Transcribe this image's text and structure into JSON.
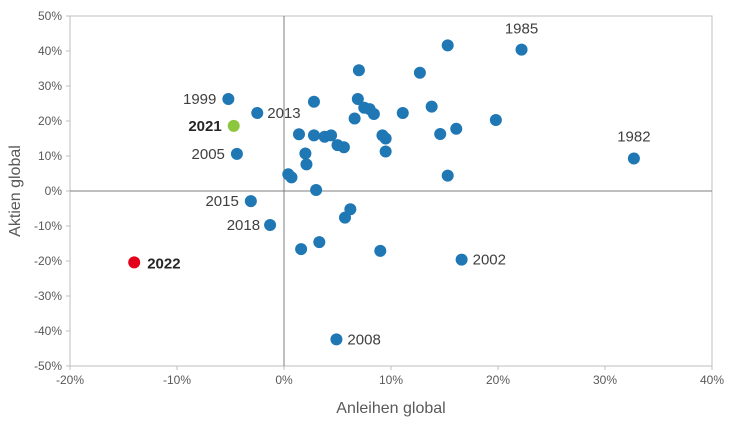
{
  "chart_data": {
    "type": "scatter",
    "title": "",
    "xlabel": "Anleihen global",
    "ylabel": "Aktien global",
    "xlim": [
      -20,
      40
    ],
    "ylim": [
      -50,
      50
    ],
    "x_ticks": [
      -20,
      -10,
      0,
      10,
      20,
      30,
      40
    ],
    "y_ticks": [
      -50,
      -40,
      -30,
      -20,
      -10,
      0,
      10,
      20,
      30,
      40,
      50
    ],
    "x_tick_labels": [
      "-20%",
      "-10%",
      "0%",
      "10%",
      "20%",
      "30%",
      "40%"
    ],
    "y_tick_labels": [
      "-50%",
      "-40%",
      "-30%",
      "-20%",
      "-10%",
      "0%",
      "10%",
      "20%",
      "30%",
      "40%",
      "50%"
    ],
    "grid": false,
    "colors": {
      "default": "#1f77b4",
      "highlight_2021": "#8cc63f",
      "highlight_2022": "#e3001b",
      "zero_lines": "#7f7f7f",
      "frame": "#bfbfbf"
    },
    "points": [
      {
        "x": 22.2,
        "y": 40.4,
        "label": "1985"
      },
      {
        "x": 32.7,
        "y": 9.3,
        "label": "1982"
      },
      {
        "x": -5.2,
        "y": 26.3,
        "label": "1999"
      },
      {
        "x": -2.5,
        "y": 22.3,
        "label": "2013"
      },
      {
        "x": -4.7,
        "y": 18.6,
        "label": "2021",
        "bold": true,
        "color": "highlight_2021"
      },
      {
        "x": -4.4,
        "y": 10.6,
        "label": "2005"
      },
      {
        "x": -3.1,
        "y": -2.9,
        "label": "2015"
      },
      {
        "x": -1.3,
        "y": -9.7,
        "label": "2018"
      },
      {
        "x": -14.0,
        "y": -20.4,
        "label": "2022",
        "bold": true,
        "color": "highlight_2022"
      },
      {
        "x": 16.6,
        "y": -19.6,
        "label": "2002"
      },
      {
        "x": 4.9,
        "y": -42.4,
        "label": "2008"
      },
      {
        "x": 15.3,
        "y": 41.6,
        "label": ""
      },
      {
        "x": 7.0,
        "y": 34.5,
        "label": ""
      },
      {
        "x": 12.7,
        "y": 33.8,
        "label": ""
      },
      {
        "x": 2.8,
        "y": 25.5,
        "label": ""
      },
      {
        "x": 6.9,
        "y": 26.3,
        "label": ""
      },
      {
        "x": 7.5,
        "y": 23.8,
        "label": ""
      },
      {
        "x": 8.0,
        "y": 23.4,
        "label": ""
      },
      {
        "x": 8.4,
        "y": 22.0,
        "label": ""
      },
      {
        "x": 6.6,
        "y": 20.7,
        "label": ""
      },
      {
        "x": 11.1,
        "y": 22.3,
        "label": ""
      },
      {
        "x": 13.8,
        "y": 24.1,
        "label": ""
      },
      {
        "x": 19.8,
        "y": 20.3,
        "label": ""
      },
      {
        "x": 16.1,
        "y": 17.8,
        "label": ""
      },
      {
        "x": 14.6,
        "y": 16.3,
        "label": ""
      },
      {
        "x": 1.4,
        "y": 16.2,
        "label": ""
      },
      {
        "x": 2.8,
        "y": 15.9,
        "label": ""
      },
      {
        "x": 3.8,
        "y": 15.5,
        "label": ""
      },
      {
        "x": 4.4,
        "y": 15.9,
        "label": ""
      },
      {
        "x": 5.0,
        "y": 13.1,
        "label": ""
      },
      {
        "x": 5.6,
        "y": 12.5,
        "label": ""
      },
      {
        "x": 9.2,
        "y": 15.9,
        "label": ""
      },
      {
        "x": 9.5,
        "y": 15.0,
        "label": ""
      },
      {
        "x": 9.5,
        "y": 11.3,
        "label": ""
      },
      {
        "x": 2.0,
        "y": 10.7,
        "label": ""
      },
      {
        "x": 2.1,
        "y": 7.6,
        "label": ""
      },
      {
        "x": 0.4,
        "y": 4.8,
        "label": ""
      },
      {
        "x": 0.7,
        "y": 3.9,
        "label": ""
      },
      {
        "x": 15.3,
        "y": 4.4,
        "label": ""
      },
      {
        "x": 3.0,
        "y": 0.3,
        "label": ""
      },
      {
        "x": 6.2,
        "y": -5.2,
        "label": ""
      },
      {
        "x": 5.7,
        "y": -7.6,
        "label": ""
      },
      {
        "x": 3.3,
        "y": -14.6,
        "label": ""
      },
      {
        "x": 1.6,
        "y": -16.6,
        "label": ""
      },
      {
        "x": 9.0,
        "y": -17.1,
        "label": ""
      }
    ]
  }
}
